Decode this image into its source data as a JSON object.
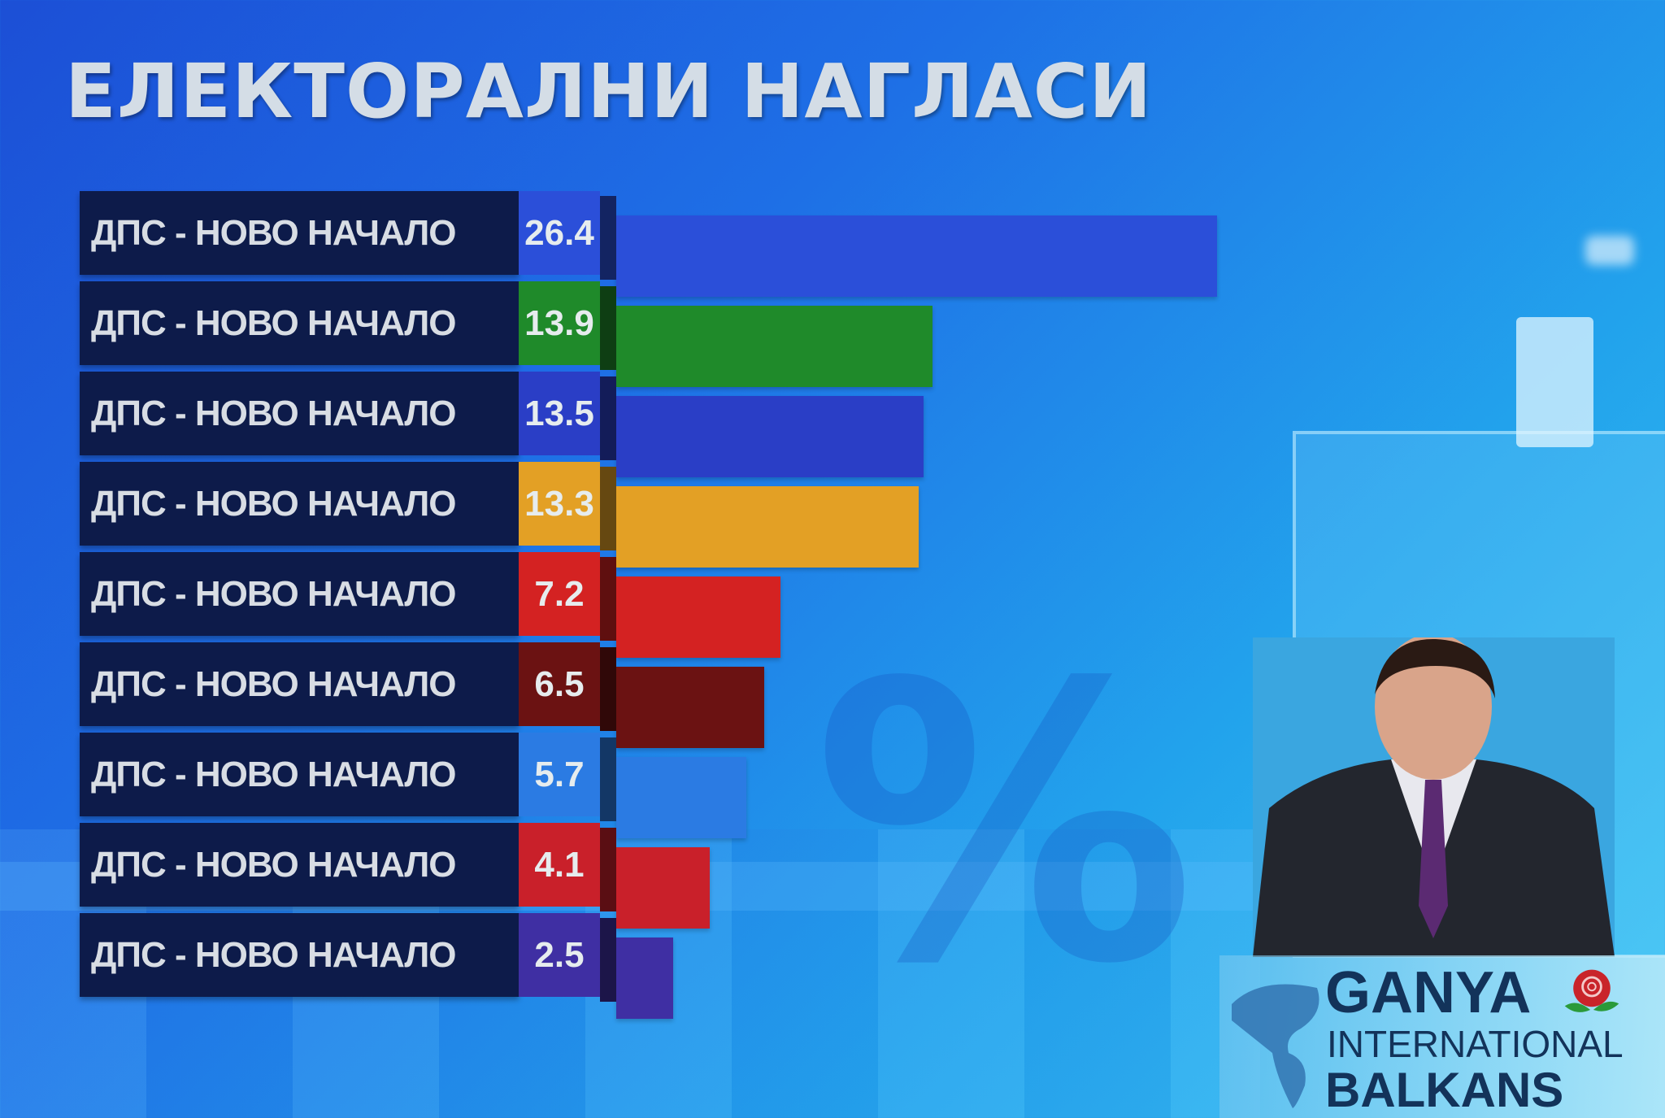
{
  "chart_data": {
    "type": "bar",
    "orientation": "horizontal",
    "title": "ЕЛЕКТОРАЛНИ НАГЛАСИ",
    "categories": [
      "ДПС - НОВО НАЧАЛО",
      "ДПС - НОВО НАЧАЛО",
      "ДПС - НОВО НАЧАЛО",
      "ДПС - НОВО НАЧАЛО",
      "ДПС - НОВО НАЧАЛО",
      "ДПС - НОВО НАЧАЛО",
      "ДПС - НОВО НАЧАЛО",
      "ДПС - НОВО НАЧАЛО",
      "ДПС - НОВО НАЧАЛО"
    ],
    "values": [
      26.4,
      13.9,
      13.5,
      13.3,
      7.2,
      6.5,
      5.7,
      4.1,
      2.5
    ],
    "value_labels": [
      "26.4",
      "13.9",
      "13.5",
      "13.3",
      "7.2",
      "6.5",
      "5.7",
      "4.1",
      "2.5"
    ],
    "colors": [
      "#2b4fd9",
      "#1f8a2a",
      "#2a3ec6",
      "#e3a025",
      "#d42222",
      "#6b1212",
      "#2b7be3",
      "#c9202a",
      "#3f2fa3"
    ],
    "xlim": [
      0,
      30
    ],
    "grid": false,
    "legend": "none"
  },
  "logo": {
    "line1": "GANYA",
    "line2": "INTERNATIONAL",
    "line3": "BALKANS"
  }
}
